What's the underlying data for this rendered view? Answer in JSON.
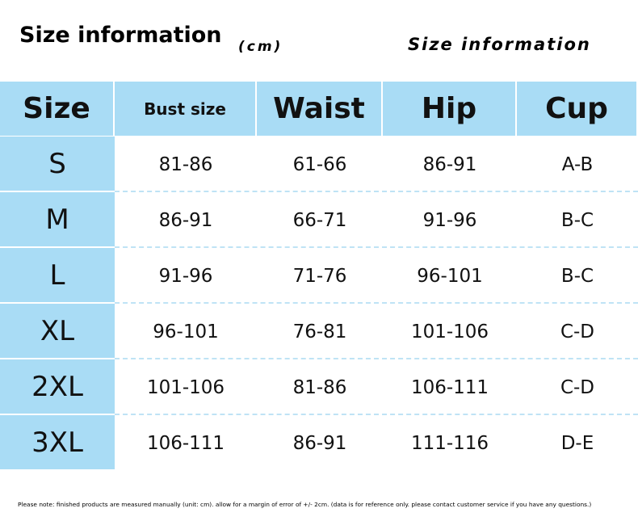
{
  "header": {
    "title": "Size information",
    "unit": "(cm)",
    "right_title": "Size information"
  },
  "table": {
    "columns": [
      "Size",
      "Bust size",
      "Waist",
      "Hip",
      "Cup"
    ],
    "rows": [
      [
        "S",
        "81-86",
        "61-66",
        "86-91",
        "A-B"
      ],
      [
        "M",
        "86-91",
        "66-71",
        "91-96",
        "B-C"
      ],
      [
        "L",
        "91-96",
        "71-76",
        "96-101",
        "B-C"
      ],
      [
        "XL",
        "96-101",
        "76-81",
        "101-106",
        "C-D"
      ],
      [
        "2XL",
        "101-106",
        "81-86",
        "106-111",
        "C-D"
      ],
      [
        "3XL",
        "106-111",
        "86-91",
        "111-116",
        "D-E"
      ]
    ]
  },
  "footnote": "Please note: finished products are measured manually (unit: cm). allow for a margin of error of +/- 2cm. (data is for reference only. please contact customer service if you have any questions.)"
}
